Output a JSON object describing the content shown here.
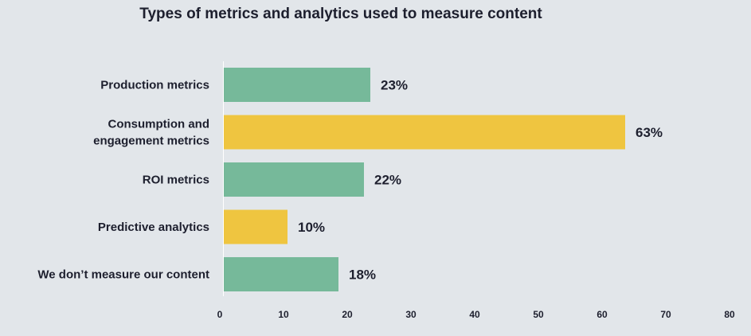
{
  "chart_data": {
    "type": "bar",
    "orientation": "horizontal",
    "title": "Types of metrics and analytics used to measure content",
    "categories": [
      [
        "Production metrics"
      ],
      [
        "Consumption and",
        "engagement metrics"
      ],
      [
        "ROI metrics"
      ],
      [
        "Predictive analytics"
      ],
      [
        "We don’t measure our content"
      ]
    ],
    "values": [
      23,
      63,
      22,
      10,
      18
    ],
    "value_labels": [
      "23%",
      "63%",
      "22%",
      "10%",
      "18%"
    ],
    "bar_colors": [
      "#76b99a",
      "#efc540",
      "#76b99a",
      "#efc540",
      "#76b99a"
    ],
    "xlim": [
      0,
      80
    ],
    "xticks": [
      0,
      10,
      20,
      30,
      40,
      50,
      60,
      70,
      80
    ],
    "xtick_labels": [
      "0",
      "10",
      "20",
      "30",
      "40",
      "50",
      "60",
      "70",
      "80"
    ],
    "xlabel": "",
    "ylabel": "",
    "grid": false,
    "legend": "none"
  }
}
